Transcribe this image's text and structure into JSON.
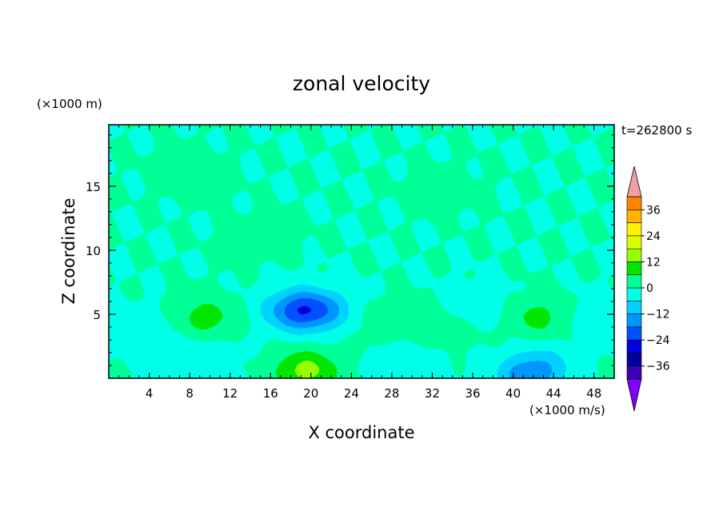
{
  "chart_data": {
    "type": "heatmap",
    "title": "zonal velocity",
    "xlabel": "X coordinate",
    "ylabel": "Z coordinate",
    "x_unit_label": "(×1000 m/s)",
    "y_unit_label": "(×1000 m)",
    "time_label": "t=262800 s",
    "xlim": [
      0,
      50
    ],
    "ylim": [
      0,
      19.8
    ],
    "x_ticks": [
      4,
      8,
      12,
      16,
      20,
      24,
      28,
      32,
      36,
      40,
      44,
      48
    ],
    "y_ticks": [
      5,
      10,
      15
    ],
    "colorbar": {
      "range": [
        -42,
        42
      ],
      "step": 6,
      "tick_values": [
        36,
        24,
        12,
        0,
        -12,
        -24,
        -36
      ],
      "tick_labels": [
        "36",
        "24",
        "12",
        "0",
        "−12",
        "−24",
        "−36"
      ],
      "extend": "both",
      "colors": [
        "#7f00ff",
        "#3f00b4",
        "#0000a0",
        "#0000dc",
        "#0050ff",
        "#0096ff",
        "#00d2ff",
        "#00ffe6",
        "#00ff96",
        "#00e600",
        "#96ff00",
        "#dcff00",
        "#fff000",
        "#ffb400",
        "#ff8200",
        "#ff5000",
        "#ff1400",
        "#f0a0a0"
      ]
    },
    "base_level": 0,
    "features": [
      {
        "x": 9.5,
        "z": 4.7,
        "peak": 9
      },
      {
        "x": 42.5,
        "z": 4.8,
        "peak": 8
      },
      {
        "x": 27.5,
        "z": 4.5,
        "peak": 4
      },
      {
        "x": 33,
        "z": 3.8,
        "peak": 4
      },
      {
        "x": 19.5,
        "z": 0.6,
        "peak": 14
      },
      {
        "x": 21,
        "z": 5.3,
        "peak": -12
      },
      {
        "x": 18.5,
        "z": 5.3,
        "peak": -17
      },
      {
        "x": 36.5,
        "z": 5.6,
        "peak": -5
      },
      {
        "x": 4,
        "z": 4,
        "peak": -4
      },
      {
        "x": 9,
        "z": 1.8,
        "peak": -5
      },
      {
        "x": 30,
        "z": 1.5,
        "peak": -4
      },
      {
        "x": 43,
        "z": 1.2,
        "peak": -5
      },
      {
        "x": 41.5,
        "z": 0.2,
        "peak": -14
      },
      {
        "x": 48,
        "z": 4.8,
        "peak": -4
      },
      {
        "x": 8,
        "z": 16,
        "peak": 4
      },
      {
        "x": 15,
        "z": 11,
        "peak": 3
      },
      {
        "x": 33,
        "z": 14.7,
        "peak": 3
      }
    ]
  }
}
